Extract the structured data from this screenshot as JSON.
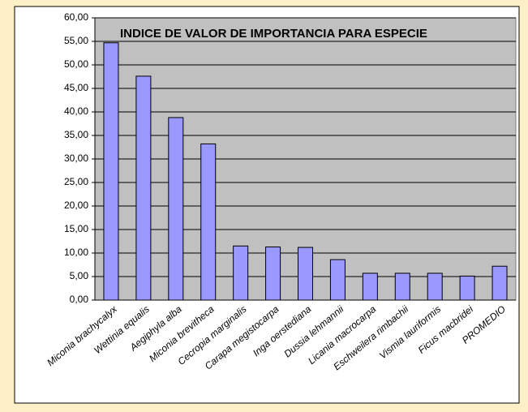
{
  "chart_data": {
    "type": "bar",
    "title": "INDICE DE VALOR DE IMPORTANCIA PARA ESPECIE",
    "categories": [
      "Miconia brachycalyx",
      "Wettinia equalis",
      "Aegiphyla alba",
      "Miconia brevitheca",
      "Cecropia marginalis",
      "Carapa megistocarpa",
      "Inga oerstediana",
      "Dussia lehmannii",
      "Licania macrocarpa",
      "Eschweilera rimbachii",
      "Vismia lauriformis",
      "Ficus macbridei",
      "PROMEDIO"
    ],
    "values": [
      54.7,
      47.6,
      38.8,
      33.2,
      11.5,
      11.3,
      11.2,
      8.6,
      5.7,
      5.7,
      5.7,
      5.1,
      7.2
    ],
    "color": "#9999ff",
    "ylim": [
      0,
      60
    ],
    "yticks": [
      {
        "value": 0,
        "label": "0,00"
      },
      {
        "value": 5,
        "label": "5,00"
      },
      {
        "value": 10,
        "label": "10,00"
      },
      {
        "value": 15,
        "label": "15,00"
      },
      {
        "value": 20,
        "label": "20,00"
      },
      {
        "value": 25,
        "label": "25,00"
      },
      {
        "value": 30,
        "label": "30,00"
      },
      {
        "value": 35,
        "label": "35,00"
      },
      {
        "value": 40,
        "label": "40,00"
      },
      {
        "value": 45,
        "label": "45,00"
      },
      {
        "value": 50,
        "label": "50,00"
      },
      {
        "value": 55,
        "label": "55,00"
      },
      {
        "value": 60,
        "label": "60,00"
      }
    ],
    "grid": true
  }
}
